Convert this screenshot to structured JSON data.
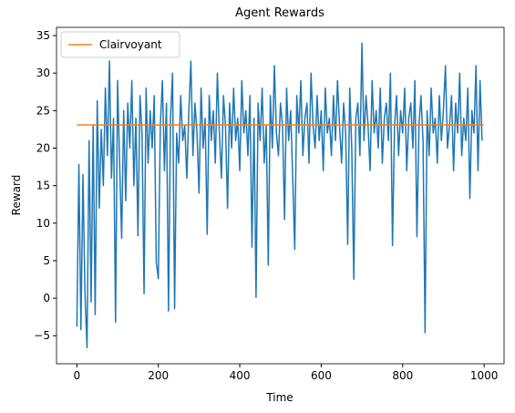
{
  "chart_data": {
    "type": "line",
    "title": "Agent Rewards",
    "xlabel": "Time",
    "ylabel": "Reward",
    "xlim": [
      -49.95,
      1048.95
    ],
    "ylim": [
      -8.74,
      36.1
    ],
    "xticks": [
      0,
      200,
      400,
      600,
      800,
      1000
    ],
    "yticks": [
      {
        "value": -5,
        "label": "−5"
      },
      0,
      5,
      10,
      15,
      20,
      25,
      30,
      35
    ],
    "legend": "upper left",
    "grid": false,
    "series": [
      {
        "name": null,
        "color": "#1f77b4",
        "x": [
          0,
          5,
          10,
          15,
          20,
          25,
          30,
          35,
          40,
          45,
          50,
          55,
          60,
          65,
          70,
          75,
          80,
          85,
          90,
          95,
          100,
          105,
          110,
          115,
          120,
          125,
          130,
          135,
          140,
          145,
          150,
          155,
          160,
          165,
          170,
          175,
          180,
          185,
          190,
          195,
          200,
          205,
          210,
          215,
          220,
          225,
          230,
          235,
          240,
          245,
          250,
          255,
          260,
          265,
          270,
          275,
          280,
          285,
          290,
          295,
          300,
          305,
          310,
          315,
          320,
          325,
          330,
          335,
          340,
          345,
          350,
          355,
          360,
          365,
          370,
          375,
          380,
          385,
          390,
          395,
          400,
          405,
          410,
          415,
          420,
          425,
          430,
          435,
          440,
          445,
          450,
          455,
          460,
          465,
          470,
          475,
          480,
          485,
          490,
          495,
          500,
          505,
          510,
          515,
          520,
          525,
          530,
          535,
          540,
          545,
          550,
          555,
          560,
          565,
          570,
          575,
          580,
          585,
          590,
          595,
          600,
          605,
          610,
          615,
          620,
          625,
          630,
          635,
          640,
          645,
          650,
          655,
          660,
          665,
          670,
          675,
          680,
          685,
          690,
          695,
          700,
          705,
          710,
          715,
          720,
          725,
          730,
          735,
          740,
          745,
          750,
          755,
          760,
          765,
          770,
          775,
          780,
          785,
          790,
          795,
          800,
          805,
          810,
          815,
          820,
          825,
          830,
          835,
          840,
          845,
          850,
          855,
          860,
          865,
          870,
          875,
          880,
          885,
          890,
          895,
          900,
          905,
          910,
          915,
          920,
          925,
          930,
          935,
          940,
          945,
          950,
          955,
          960,
          965,
          970,
          975,
          980,
          985,
          990,
          995
        ],
        "values": [
          -3.8,
          17.8,
          -4.2,
          16.5,
          0.5,
          -6.6,
          21,
          -0.5,
          23,
          -2.2,
          26.3,
          12,
          22.5,
          15,
          28,
          19,
          31.6,
          16,
          24,
          -3.2,
          29,
          18,
          8,
          25,
          13,
          26,
          20,
          29,
          15,
          24,
          8.3,
          27,
          22,
          0.6,
          28,
          18,
          25,
          20,
          27,
          4.8,
          2.6,
          23,
          29,
          17,
          26,
          -1.7,
          24,
          30,
          -1.4,
          22,
          18,
          27,
          21,
          23,
          16,
          25,
          31.6,
          19,
          26,
          22,
          14,
          28,
          20,
          24,
          8.5,
          27,
          21,
          25,
          18,
          30,
          22,
          16,
          27,
          23,
          12,
          26,
          20,
          28,
          21,
          24,
          17,
          29,
          22,
          25,
          19,
          27,
          6.8,
          24,
          0.1,
          26,
          21,
          28,
          18,
          23,
          4.4,
          27,
          20,
          31,
          22,
          19,
          26,
          23,
          10.5,
          28,
          21,
          25,
          16,
          6.5,
          27,
          22,
          29,
          19,
          24,
          26,
          18,
          30,
          23,
          20,
          27,
          21,
          25,
          17,
          28,
          22,
          24,
          19,
          27,
          21,
          29,
          23,
          18,
          26,
          22,
          7.2,
          28,
          20,
          2.5,
          24,
          26,
          19,
          34,
          21,
          27,
          23,
          17,
          29,
          22,
          25,
          20,
          28,
          18,
          24,
          26,
          21,
          30,
          7,
          23,
          27,
          19,
          25,
          22,
          28,
          17,
          24,
          26,
          20,
          29,
          8.2,
          23,
          27,
          21,
          -4.6,
          25,
          19,
          28,
          22,
          24,
          18,
          27,
          21,
          25,
          31,
          20,
          23,
          27,
          17,
          26,
          22,
          30,
          19,
          24,
          21,
          28,
          13.3,
          25,
          22,
          31,
          17,
          29,
          21
        ]
      },
      {
        "name": "Clairvoyant",
        "color": "#ff7f0e",
        "x": [
          0,
          999
        ],
        "values": [
          23.1,
          23.1
        ]
      }
    ]
  }
}
